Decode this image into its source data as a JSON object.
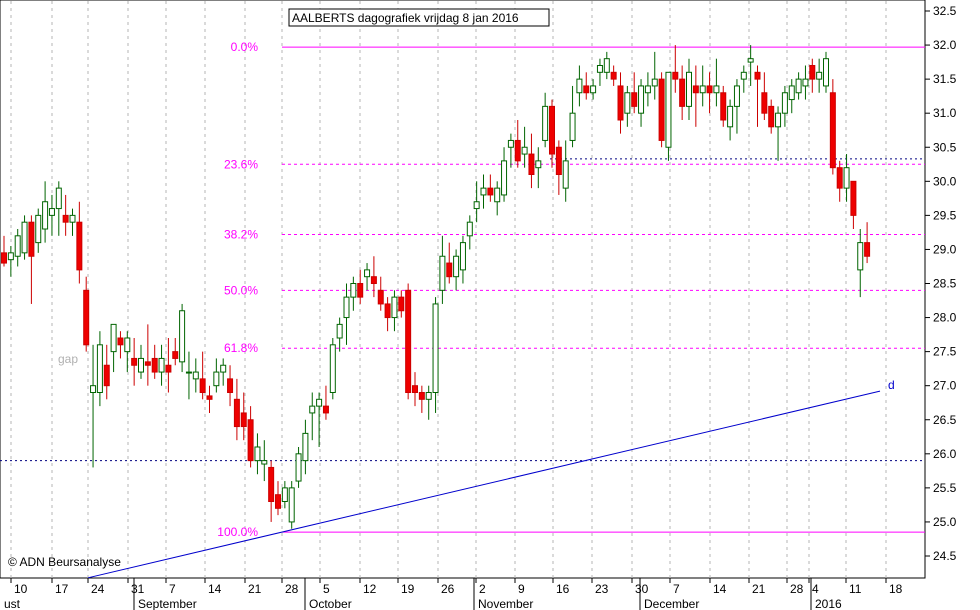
{
  "chart_data": {
    "type": "candlestick",
    "title": "AALBERTS dagografiek vrijdag 8 jan 2016",
    "copyright": "© ADN Beursanalyse",
    "y_range": [
      24.2,
      32.6
    ],
    "y_ticks": [
      "24.5",
      "25.0",
      "25.5",
      "26.0",
      "26.5",
      "27.0",
      "27.5",
      "28.0",
      "28.5",
      "29.0",
      "29.5",
      "30.0",
      "30.5",
      "31.0",
      "31.5",
      "32.0",
      "32.5"
    ],
    "x_day_labels": [
      "10",
      "17",
      "24",
      "31",
      "7",
      "14",
      "21",
      "28",
      "5",
      "12",
      "19",
      "26",
      "2",
      "9",
      "16",
      "23",
      "30",
      "7",
      "14",
      "21",
      "28",
      "4",
      "11",
      "18"
    ],
    "x_month_labels": [
      "ust",
      "September",
      "October",
      "November",
      "December",
      "2016"
    ],
    "fib_levels": [
      {
        "label": "0.0%",
        "value": 31.97
      },
      {
        "label": "23.6%",
        "value": 30.25
      },
      {
        "label": "38.2%",
        "value": 29.22
      },
      {
        "label": "50.0%",
        "value": 28.4
      },
      {
        "label": "61.8%",
        "value": 27.55
      },
      {
        "label": "100.0%",
        "value": 24.85
      }
    ],
    "extra_levels": [
      30.33,
      25.9
    ],
    "trendline": {
      "start": [
        24.18,
        24.18
      ],
      "end": [
        27.0,
        26.92
      ],
      "label": "d"
    },
    "annotation": "gap",
    "candles": [
      [
        28.95,
        29.2,
        28.75,
        28.8
      ],
      [
        28.85,
        29.05,
        28.6,
        28.95
      ],
      [
        28.9,
        29.3,
        28.75,
        29.2
      ],
      [
        28.95,
        29.5,
        28.85,
        29.4
      ],
      [
        29.4,
        29.5,
        28.2,
        28.9
      ],
      [
        29.1,
        29.6,
        28.95,
        29.5
      ],
      [
        29.3,
        30.0,
        29.1,
        29.7
      ],
      [
        29.5,
        29.8,
        29.2,
        29.6
      ],
      [
        29.6,
        30.0,
        29.2,
        29.9
      ],
      [
        29.5,
        29.8,
        29.2,
        29.4
      ],
      [
        29.4,
        29.6,
        29.2,
        29.5
      ],
      [
        29.4,
        29.7,
        28.5,
        28.7
      ],
      [
        28.4,
        28.6,
        27.5,
        27.6
      ],
      [
        26.9,
        27.6,
        25.8,
        27.0
      ],
      [
        26.9,
        27.8,
        26.7,
        27.6
      ],
      [
        27.3,
        27.6,
        26.8,
        27.0
      ],
      [
        27.5,
        27.9,
        27.2,
        27.9
      ],
      [
        27.7,
        27.8,
        27.4,
        27.6
      ],
      [
        27.5,
        27.8,
        27.2,
        27.7
      ],
      [
        27.4,
        27.7,
        27.0,
        27.3
      ],
      [
        27.2,
        27.6,
        27.1,
        27.4
      ],
      [
        27.35,
        27.9,
        27.0,
        27.3
      ],
      [
        27.4,
        27.6,
        27.1,
        27.2
      ],
      [
        27.2,
        27.6,
        27.0,
        27.4
      ],
      [
        27.3,
        27.7,
        26.9,
        27.2
      ],
      [
        27.5,
        27.7,
        27.3,
        27.4
      ],
      [
        27.35,
        28.2,
        27.2,
        28.1
      ],
      [
        27.2,
        27.5,
        26.8,
        27.2
      ],
      [
        27.1,
        27.4,
        26.9,
        27.2
      ],
      [
        27.1,
        27.5,
        26.8,
        26.9
      ],
      [
        26.85,
        27.0,
        26.6,
        26.8
      ],
      [
        27.0,
        27.4,
        26.9,
        27.2
      ],
      [
        27.2,
        27.4,
        27.0,
        27.3
      ],
      [
        27.1,
        27.3,
        26.7,
        26.9
      ],
      [
        26.8,
        27.1,
        26.2,
        26.4
      ],
      [
        26.6,
        26.9,
        26.2,
        26.4
      ],
      [
        26.5,
        26.7,
        25.8,
        25.9
      ],
      [
        25.9,
        26.3,
        25.7,
        26.1
      ],
      [
        25.85,
        26.2,
        25.6,
        25.9
      ],
      [
        25.8,
        25.9,
        25.0,
        25.3
      ],
      [
        25.4,
        25.6,
        25.1,
        25.2
      ],
      [
        25.3,
        25.6,
        25.2,
        25.5
      ],
      [
        25.0,
        25.6,
        24.9,
        25.5
      ],
      [
        25.6,
        26.1,
        25.5,
        26.0
      ],
      [
        25.9,
        26.5,
        25.7,
        26.3
      ],
      [
        26.6,
        26.9,
        26.2,
        26.7
      ],
      [
        26.7,
        26.9,
        26.1,
        26.8
      ],
      [
        26.7,
        27.0,
        26.5,
        26.6
      ],
      [
        26.9,
        27.7,
        26.8,
        27.6
      ],
      [
        27.7,
        28.0,
        27.5,
        27.9
      ],
      [
        28.0,
        28.5,
        27.6,
        28.3
      ],
      [
        28.3,
        28.6,
        28.1,
        28.5
      ],
      [
        28.5,
        28.7,
        28.2,
        28.3
      ],
      [
        28.6,
        28.8,
        28.4,
        28.7
      ],
      [
        28.6,
        28.9,
        28.3,
        28.5
      ],
      [
        28.4,
        28.6,
        28.1,
        28.2
      ],
      [
        28.2,
        28.3,
        27.8,
        28.0
      ],
      [
        28.0,
        28.4,
        27.8,
        28.3
      ],
      [
        28.3,
        28.4,
        28.0,
        28.1
      ],
      [
        28.4,
        28.5,
        26.8,
        26.9
      ],
      [
        27.0,
        27.2,
        26.7,
        26.9
      ],
      [
        26.9,
        27.0,
        26.6,
        26.8
      ],
      [
        26.8,
        27.0,
        26.5,
        26.9
      ],
      [
        26.9,
        28.3,
        26.6,
        28.2
      ],
      [
        28.4,
        29.2,
        28.2,
        28.9
      ],
      [
        28.8,
        29.1,
        28.5,
        28.6
      ],
      [
        28.6,
        29.0,
        28.4,
        28.9
      ],
      [
        28.7,
        29.2,
        28.5,
        29.1
      ],
      [
        29.2,
        29.5,
        29.0,
        29.4
      ],
      [
        29.6,
        30.0,
        29.4,
        29.7
      ],
      [
        29.8,
        30.1,
        29.6,
        29.9
      ],
      [
        29.9,
        30.1,
        29.7,
        29.8
      ],
      [
        29.7,
        30.0,
        29.5,
        29.9
      ],
      [
        29.8,
        30.5,
        29.7,
        30.3
      ],
      [
        30.5,
        30.7,
        30.2,
        30.6
      ],
      [
        30.6,
        30.9,
        30.2,
        30.3
      ],
      [
        30.4,
        30.8,
        30.2,
        30.5
      ],
      [
        30.4,
        30.7,
        29.9,
        30.1
      ],
      [
        30.2,
        30.5,
        29.9,
        30.3
      ],
      [
        30.6,
        31.3,
        30.5,
        31.1
      ],
      [
        31.1,
        31.2,
        30.2,
        30.4
      ],
      [
        30.5,
        30.6,
        29.8,
        30.1
      ],
      [
        29.9,
        30.6,
        29.7,
        30.3
      ],
      [
        30.6,
        31.4,
        30.5,
        31.0
      ],
      [
        31.3,
        31.7,
        31.1,
        31.5
      ],
      [
        31.4,
        31.6,
        31.2,
        31.3
      ],
      [
        31.3,
        31.5,
        31.2,
        31.4
      ],
      [
        31.6,
        31.8,
        31.4,
        31.7
      ],
      [
        31.6,
        31.9,
        31.5,
        31.8
      ],
      [
        31.6,
        31.7,
        31.4,
        31.5
      ],
      [
        31.4,
        31.6,
        30.7,
        30.9
      ],
      [
        31.0,
        31.4,
        30.8,
        31.3
      ],
      [
        31.3,
        31.6,
        31.0,
        31.1
      ],
      [
        31.0,
        31.5,
        30.8,
        31.4
      ],
      [
        31.3,
        31.6,
        31.1,
        31.4
      ],
      [
        31.4,
        31.9,
        31.2,
        31.5
      ],
      [
        31.5,
        31.6,
        30.5,
        30.6
      ],
      [
        30.5,
        31.6,
        30.3,
        31.6
      ],
      [
        31.6,
        32.0,
        31.3,
        31.5
      ],
      [
        31.5,
        31.7,
        30.9,
        31.1
      ],
      [
        31.1,
        31.8,
        30.9,
        31.6
      ],
      [
        31.4,
        31.7,
        30.8,
        31.3
      ],
      [
        31.3,
        31.7,
        31.1,
        31.4
      ],
      [
        31.4,
        31.6,
        31.0,
        31.3
      ],
      [
        31.3,
        31.8,
        31.1,
        31.4
      ],
      [
        31.3,
        31.4,
        30.8,
        30.9
      ],
      [
        30.8,
        31.2,
        30.6,
        31.1
      ],
      [
        31.1,
        31.5,
        30.7,
        31.4
      ],
      [
        31.5,
        31.7,
        31.3,
        31.6
      ],
      [
        31.75,
        32.0,
        31.4,
        31.8
      ],
      [
        31.6,
        31.7,
        30.8,
        31.5
      ],
      [
        31.3,
        31.6,
        30.9,
        31.0
      ],
      [
        31.1,
        31.2,
        30.7,
        30.8
      ],
      [
        30.8,
        31.1,
        30.3,
        31.0
      ],
      [
        31.0,
        31.4,
        30.8,
        31.3
      ],
      [
        31.2,
        31.5,
        31.0,
        31.4
      ],
      [
        31.3,
        31.6,
        31.2,
        31.5
      ],
      [
        31.4,
        31.7,
        31.2,
        31.5
      ],
      [
        31.7,
        31.8,
        31.3,
        31.5
      ],
      [
        31.5,
        31.8,
        31.3,
        31.6
      ],
      [
        31.4,
        31.9,
        31.3,
        31.8
      ],
      [
        31.3,
        31.5,
        30.1,
        30.2
      ],
      [
        30.2,
        30.3,
        29.7,
        29.9
      ],
      [
        29.9,
        30.4,
        29.7,
        30.2
      ],
      [
        30.0,
        30.0,
        29.3,
        29.5
      ],
      [
        28.7,
        29.3,
        28.3,
        29.1
      ],
      [
        29.1,
        29.4,
        28.8,
        28.9
      ]
    ]
  }
}
